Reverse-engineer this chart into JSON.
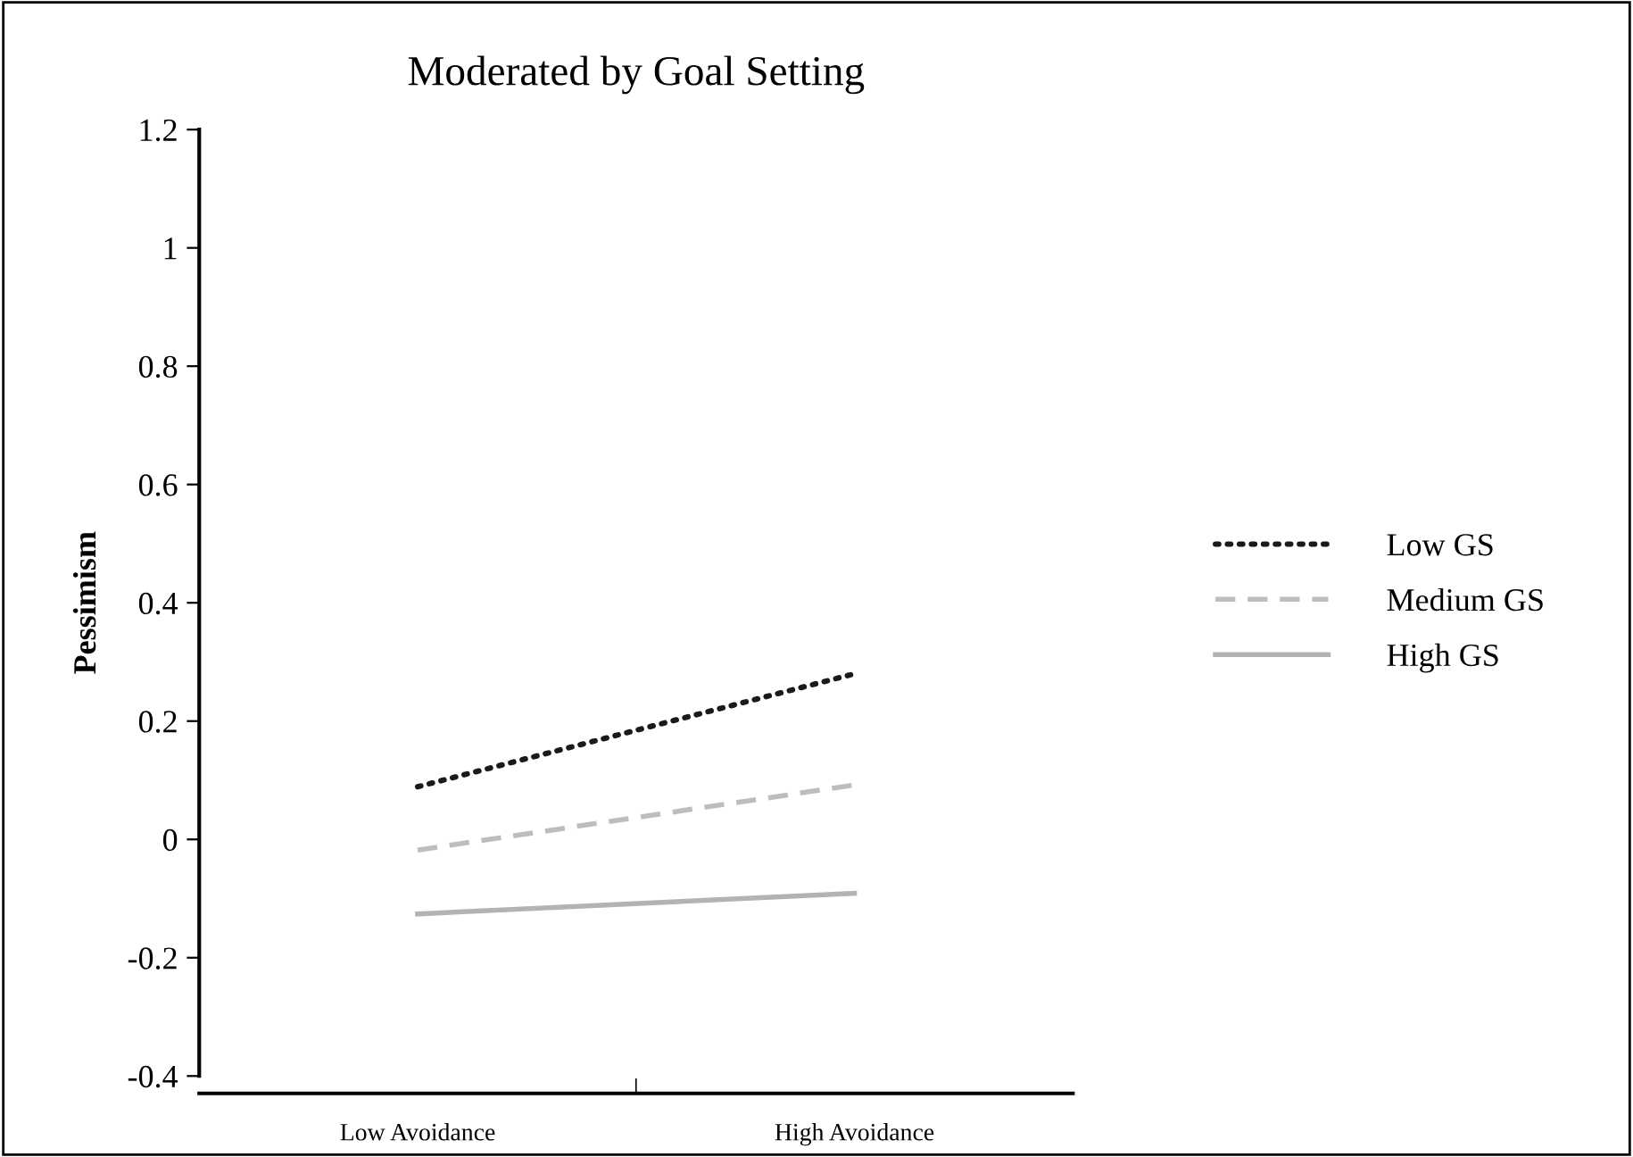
{
  "chart_data": {
    "type": "line",
    "title": "Moderated by Goal Setting",
    "ylabel": "Pessimism",
    "categories": [
      "Low Avoidance",
      "High Avoidance"
    ],
    "series": [
      {
        "name": "Low GS",
        "color": "#1a1a1a",
        "line_style": "dotted",
        "values": [
          0.089,
          0.28
        ]
      },
      {
        "name": "Medium GS",
        "color": "#bdbdbd",
        "line_style": "dashed",
        "values": [
          -0.018,
          0.092
        ]
      },
      {
        "name": "High GS",
        "color": "#b3b3b3",
        "line_style": "solid",
        "values": [
          -0.126,
          -0.091
        ]
      }
    ],
    "ylim": [
      -0.4,
      1.2
    ],
    "yticks": [
      {
        "value": 1.2,
        "label": "1.2"
      },
      {
        "value": 1,
        "label": "1"
      },
      {
        "value": 0.8,
        "label": "0.8"
      },
      {
        "value": 0.6,
        "label": "0.6"
      },
      {
        "value": 0.4,
        "label": "0.4"
      },
      {
        "value": 0.2,
        "label": "0.2"
      },
      {
        "value": 0,
        "label": "0"
      },
      {
        "value": -0.2,
        "label": "-0.2"
      },
      {
        "value": -0.4,
        "label": "-0.4"
      }
    ],
    "grid": false,
    "legend": "right",
    "marker": "none"
  }
}
